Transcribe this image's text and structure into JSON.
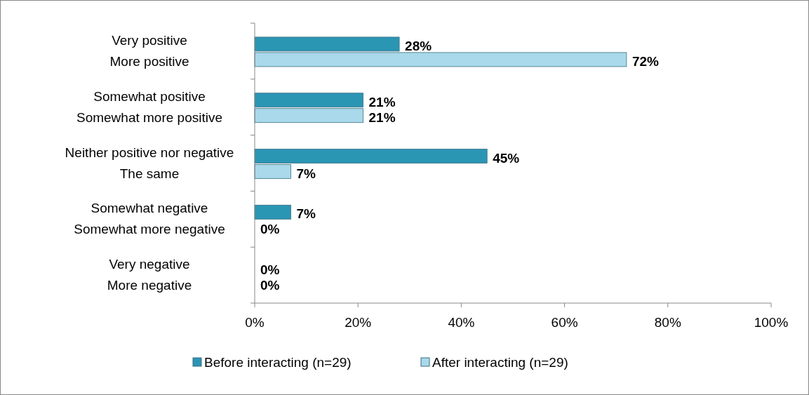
{
  "chart_data": {
    "type": "bar",
    "orientation": "horizontal",
    "categories": [
      "Very positive\nMore positive",
      "Somewhat positive\nSomewhat more positive",
      "Neither positive nor negative\nThe same",
      "Somewhat negative\nSomewhat more negative",
      "Very negative\nMore negative"
    ],
    "series": [
      {
        "name": "Before interacting (n=29)",
        "color": "#2b95b4",
        "values": [
          28,
          21,
          45,
          7,
          0
        ],
        "value_labels": [
          "28%",
          "21%",
          "45%",
          "7%",
          "0%"
        ]
      },
      {
        "name": "After interacting (n=29)",
        "color": "#a9d9ea",
        "values": [
          72,
          21,
          7,
          0,
          0
        ],
        "value_labels": [
          "72%",
          "21%",
          "7%",
          "0%",
          "0%"
        ]
      }
    ],
    "xlim": [
      0,
      100
    ],
    "xticks": [
      {
        "value": 0,
        "label": "0%"
      },
      {
        "value": 20,
        "label": "20%"
      },
      {
        "value": 40,
        "label": "40%"
      },
      {
        "value": 60,
        "label": "60%"
      },
      {
        "value": 80,
        "label": "80%"
      },
      {
        "value": 100,
        "label": "100%"
      }
    ],
    "grid": false,
    "legend": "bottom"
  }
}
